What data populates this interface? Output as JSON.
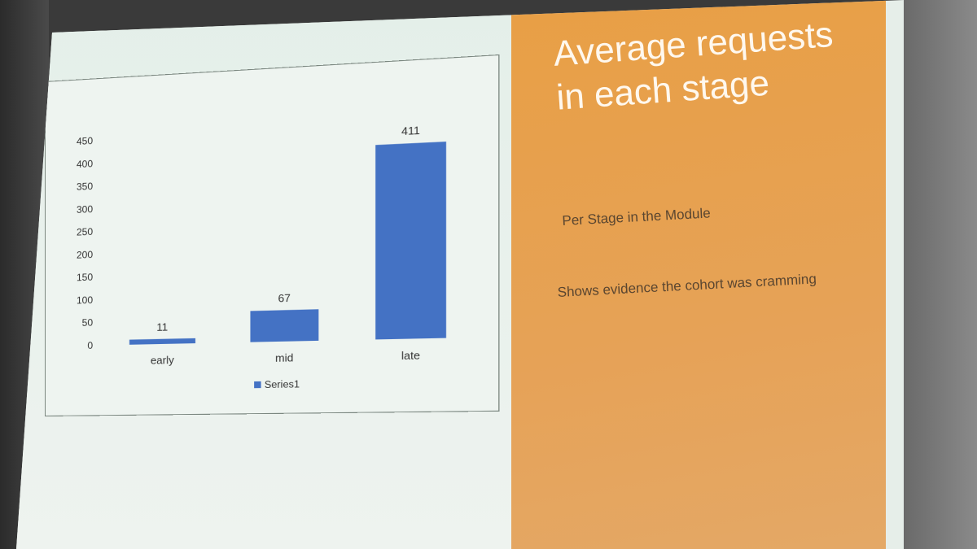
{
  "slide": {
    "title": "Average requests in each stage",
    "subtitle": "Per Stage in the Module",
    "body": "Shows evidence the cohort was cramming"
  },
  "chart_data": {
    "type": "bar",
    "categories": [
      "early",
      "mid",
      "late"
    ],
    "series": [
      {
        "name": "Series1",
        "values": [
          11,
          67,
          411
        ],
        "color": "#4472c4"
      }
    ],
    "ylim": [
      0,
      450
    ],
    "yticks": [
      0,
      50,
      100,
      150,
      200,
      250,
      300,
      350,
      400,
      450
    ],
    "data_labels": true,
    "legend": "bottom",
    "grid": false
  }
}
